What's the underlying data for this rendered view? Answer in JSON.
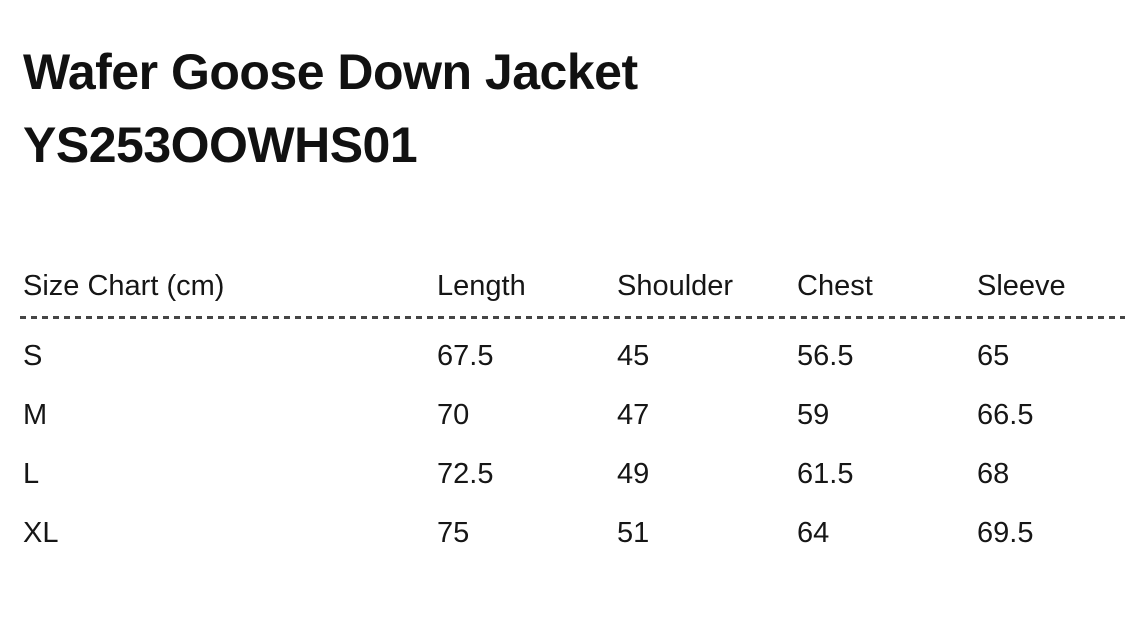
{
  "header": {
    "product_name": "Wafer Goose Down Jacket",
    "product_code": "YS253OOWHS01"
  },
  "size_chart": {
    "title": "Size Chart (cm)",
    "columns": [
      "Length",
      "Shoulder",
      "Chest",
      "Sleeve"
    ],
    "rows": [
      {
        "size": "S",
        "values": [
          "67.5",
          "45",
          "56.5",
          "65"
        ]
      },
      {
        "size": "M",
        "values": [
          "70",
          "47",
          "59",
          "66.5"
        ]
      },
      {
        "size": "L",
        "values": [
          "72.5",
          "49",
          "61.5",
          "68"
        ]
      },
      {
        "size": "XL",
        "values": [
          "75",
          "51",
          "64",
          "69.5"
        ]
      }
    ]
  },
  "colors": {
    "background": "#ffffff",
    "text": "#141414",
    "divider": "#454545"
  }
}
